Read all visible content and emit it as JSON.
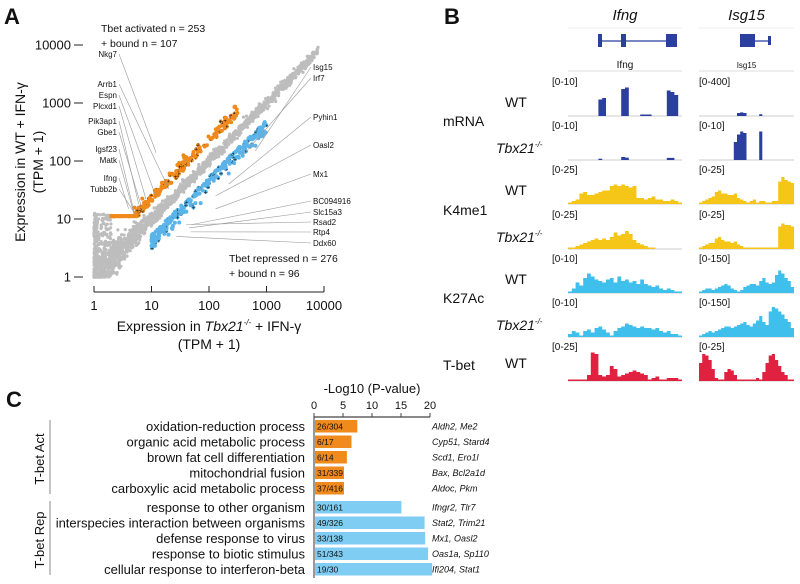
{
  "panels": {
    "a": "A",
    "b": "B",
    "c": "C"
  },
  "chart_data": [
    {
      "type": "scatter",
      "panel": "A",
      "xlabel_pre": "Expression in ",
      "xlabel_gene": "Tbx21",
      "xlabel_sup": "-/-",
      "xlabel_post": " + IFN-γ",
      "xlabel2": "(TPM + 1)",
      "ylabel": "Expression in WT + IFN-γ",
      "ylabel2": "(TPM + 1)",
      "xscale": "log",
      "yscale": "log",
      "xlim": [
        1,
        10000
      ],
      "ylim": [
        1,
        10000
      ],
      "xticks": [
        "1",
        "10",
        "100",
        "1000",
        "10000"
      ],
      "yticks": [
        "1",
        "10",
        "100",
        "1000",
        "10000"
      ],
      "annot_activated": [
        "Tbet activated n = 253",
        "+ bound n = 107"
      ],
      "annot_repressed": [
        "Tbet repressed n = 276",
        "+ bound n = 96"
      ],
      "colors": {
        "background": "#bdbdbd",
        "activated": "#f08a1c",
        "repressed": "#5ab4ea",
        "bound": "#111111"
      },
      "labeled_genes_activated": [
        {
          "gene": "Nkg7",
          "x": 12,
          "y": 140
        },
        {
          "gene": "Arrb1",
          "x": 20,
          "y": 33
        },
        {
          "gene": "Espn",
          "x": 12,
          "y": 24
        },
        {
          "gene": "Plcxd1",
          "x": 8,
          "y": 22
        },
        {
          "gene": "Pik3ap1",
          "x": 6,
          "y": 18
        },
        {
          "gene": "Gbe1",
          "x": 7,
          "y": 14
        },
        {
          "gene": "Igsf23",
          "x": 5,
          "y": 13
        },
        {
          "gene": "Matk",
          "x": 5,
          "y": 12
        },
        {
          "gene": "Ifng",
          "x": 4,
          "y": 15
        },
        {
          "gene": "Tubb2b",
          "x": 5,
          "y": 13
        }
      ],
      "labeled_genes_repressed": [
        {
          "gene": "Isg15",
          "x": 640,
          "y": 150
        },
        {
          "gene": "Irf7",
          "x": 400,
          "y": 130
        },
        {
          "gene": "Pyhin1",
          "x": 220,
          "y": 40
        },
        {
          "gene": "Oasl2",
          "x": 130,
          "y": 25
        },
        {
          "gene": "Mx1",
          "x": 130,
          "y": 15
        },
        {
          "gene": "BC094916",
          "x": 50,
          "y": 8
        },
        {
          "gene": "Slc15a3",
          "x": 45,
          "y": 7
        },
        {
          "gene": "Rsad2",
          "x": 40,
          "y": 8
        },
        {
          "gene": "Rtp4",
          "x": 48,
          "y": 6
        },
        {
          "gene": "Ddx60",
          "x": 27,
          "y": 5
        }
      ]
    },
    {
      "type": "bar",
      "panel": "C",
      "orientation": "horizontal",
      "title": "-Log10 (P-value)",
      "xlim": [
        0,
        20
      ],
      "xticks": [
        "0",
        "5",
        "10",
        "15",
        "20"
      ],
      "groups": [
        {
          "name": "T-bet Act",
          "color": "#f08a1c",
          "bars": [
            {
              "term": "oxidation-reduction process",
              "value": 7.3,
              "count": "26/304",
              "genes": "Aldh2, Me2"
            },
            {
              "term": "organic acid metabolic process",
              "value": 6.3,
              "count": "6/17",
              "genes": "Cyp51, Stard4"
            },
            {
              "term": "brown fat cell differentiation",
              "value": 5.5,
              "count": "6/14",
              "genes": "Scd1, Ero1l"
            },
            {
              "term": "mitochondrial fusion",
              "value": 5.0,
              "count": "31/339",
              "genes": "Bax, Bcl2a1d"
            },
            {
              "term": "carboxylic acid metabolic process",
              "value": 5.0,
              "count": "37/416",
              "genes": "Aldoc, Pkm"
            }
          ]
        },
        {
          "name": "T-bet Rep",
          "color": "#7fcdf2",
          "bars": [
            {
              "term": "response to other organism",
              "value": 14.9,
              "count": "30/161",
              "genes": "Ifngr2, Tlr7"
            },
            {
              "term": "interspecies interaction between organisms",
              "value": 18.9,
              "count": "49/326",
              "genes": "Stat2, Trim21"
            },
            {
              "term": "defense response to virus",
              "value": 19.0,
              "count": "33/138",
              "genes": "Mx1, Oasl2"
            },
            {
              "term": "response to biotic stimulus",
              "value": 19.5,
              "count": "51/343",
              "genes": "Oas1a, Sp110"
            },
            {
              "term": "cellular response to interferon-beta",
              "value": 20.2,
              "count": "19/30",
              "genes": "Ifi204, Stat1"
            }
          ]
        }
      ]
    }
  ],
  "tracks": {
    "genes": [
      {
        "title": "Ifng",
        "label": "Ifng"
      },
      {
        "title": "Isg15",
        "label": "Isg15"
      }
    ],
    "groups": [
      {
        "name": "mRNA",
        "color": "#2a3f9e"
      },
      {
        "name": "K4me1",
        "color": "#f5c518"
      },
      {
        "name": "K27Ac",
        "color": "#3fbfec"
      },
      {
        "name": "T-bet",
        "color": "#e0213f"
      }
    ],
    "wt_label": "WT",
    "ko_gene": "Tbx21",
    "ko_sup": "-/-",
    "rows": [
      {
        "group": 0,
        "sample": "WT",
        "ranges": [
          "[0-10]",
          "[0-400]"
        ],
        "profiles": [
          [
            0,
            0,
            0,
            0,
            0,
            0,
            0,
            0,
            0.55,
            0.6,
            0,
            0,
            0,
            0,
            0.9,
            0.95,
            0,
            0,
            0,
            0.05,
            0.05,
            0.05,
            0,
            0,
            0,
            0,
            0.85,
            0.8,
            0.7,
            0
          ],
          [
            0,
            0,
            0,
            0,
            0,
            0,
            0,
            0,
            0,
            0,
            0,
            0,
            0.1,
            0.12,
            0.1,
            0,
            0,
            0,
            0,
            0.06,
            0,
            0,
            0,
            0,
            0,
            0,
            0,
            0,
            0,
            0
          ]
        ]
      },
      {
        "group": 0,
        "sample": "KO",
        "ranges": [
          "[0-10]",
          "[0-10]"
        ],
        "profiles": [
          [
            0,
            0,
            0,
            0,
            0,
            0,
            0,
            0,
            0.04,
            0,
            0,
            0,
            0,
            0,
            0.1,
            0.08,
            0,
            0,
            0,
            0,
            0,
            0,
            0,
            0,
            0,
            0,
            0.07,
            0.07,
            0,
            0
          ],
          [
            0,
            0,
            0,
            0,
            0,
            0,
            0,
            0,
            0,
            0,
            0,
            0.6,
            0.85,
            0.95,
            0.9,
            0,
            0,
            0,
            0,
            0.95,
            0,
            0,
            0,
            0,
            0,
            0,
            0,
            0,
            0,
            0
          ]
        ]
      },
      {
        "group": 1,
        "sample": "WT",
        "ranges": [
          "[0-25]",
          "[0-25]"
        ],
        "profiles": [
          [
            0.05,
            0.1,
            0.15,
            0.35,
            0.4,
            0.3,
            0.3,
            0.35,
            0.4,
            0.45,
            0.45,
            0.6,
            0.65,
            0.6,
            0.65,
            0.6,
            0.55,
            0.6,
            0.2,
            0.2,
            0.15,
            0.2,
            0.25,
            0.15,
            0.15,
            0.1,
            0.1,
            0.15,
            0.1,
            0.05
          ],
          [
            0.05,
            0.1,
            0.15,
            0.2,
            0.25,
            0.4,
            0.45,
            0.35,
            0.35,
            0.3,
            0.3,
            0.35,
            0.2,
            0.15,
            0.1,
            0.05,
            0.1,
            0.15,
            0.05,
            0.1,
            0.1,
            0.05,
            0.05,
            0.1,
            0.1,
            0.75,
            0.9,
            0.8,
            0.75,
            0.7
          ]
        ]
      },
      {
        "group": 1,
        "sample": "KO",
        "ranges": [
          "[0-25]",
          "[0-25]"
        ],
        "profiles": [
          [
            0.05,
            0.05,
            0.1,
            0.15,
            0.2,
            0.25,
            0.3,
            0.35,
            0.3,
            0.35,
            0.3,
            0.4,
            0.55,
            0.45,
            0.5,
            0.6,
            0.5,
            0.3,
            0.2,
            0.15,
            0.1,
            0.05,
            0.05,
            0,
            0,
            0,
            0,
            0,
            0,
            0
          ],
          [
            0.05,
            0.1,
            0.15,
            0.2,
            0.2,
            0.35,
            0.4,
            0.3,
            0.25,
            0.25,
            0.2,
            0.25,
            0.15,
            0.1,
            0.05,
            0.05,
            0.05,
            0.05,
            0.05,
            0.05,
            0.05,
            0.05,
            0.05,
            0.05,
            0.05,
            0.75,
            0.85,
            0.8,
            0.8,
            0.75
          ]
        ]
      },
      {
        "group": 2,
        "sample": "WT",
        "ranges": [
          "[0-10]",
          "[0-150]"
        ],
        "profiles": [
          [
            0.05,
            0.15,
            0.35,
            0.25,
            0.5,
            0.65,
            0.55,
            0.45,
            0.4,
            0.35,
            0.45,
            0.5,
            0.35,
            0.55,
            0.4,
            0.45,
            0.35,
            0.4,
            0.3,
            0.45,
            0.3,
            0.25,
            0.2,
            0.25,
            0.15,
            0.1,
            0.15,
            0.1,
            0.05,
            0.05
          ],
          [
            0.05,
            0.1,
            0.15,
            0.15,
            0.1,
            0.15,
            0.2,
            0.25,
            0.3,
            0.25,
            0.15,
            0.1,
            0.05,
            0.1,
            0.2,
            0.25,
            0.3,
            0.3,
            0.25,
            0.4,
            0.5,
            0.35,
            0.3,
            0.35,
            0.6,
            0.75,
            0.65,
            0.5,
            0.4,
            0.2
          ]
        ]
      },
      {
        "group": 2,
        "sample": "KO",
        "ranges": [
          "[0-10]",
          "[0-150]"
        ],
        "profiles": [
          [
            0.1,
            0.2,
            0.15,
            0.05,
            0.2,
            0.25,
            0.15,
            0.3,
            0.35,
            0.25,
            0.15,
            0.05,
            0.2,
            0.3,
            0.35,
            0.45,
            0.4,
            0.35,
            0.3,
            0.35,
            0.3,
            0.3,
            0.25,
            0.3,
            0.2,
            0.15,
            0.2,
            0.1,
            0.1,
            0.05
          ],
          [
            0.05,
            0.1,
            0.15,
            0.2,
            0.15,
            0.2,
            0.25,
            0.3,
            0.35,
            0.35,
            0.3,
            0.35,
            0.4,
            0.45,
            0.5,
            0.4,
            0.35,
            0.45,
            0.55,
            0.7,
            0.5,
            0.4,
            0.85,
            1,
            0.95,
            0.85,
            0.75,
            0.6,
            0.5,
            0.3
          ]
        ]
      },
      {
        "group": 3,
        "sample": "WT",
        "ranges": [
          "[0-25]",
          "[0-25]"
        ],
        "profiles": [
          [
            0.05,
            0.05,
            0.05,
            0.05,
            0.05,
            0.2,
            0.95,
            0.9,
            0.2,
            0.15,
            0.2,
            0.5,
            0.4,
            0.15,
            0.2,
            0.25,
            0.3,
            0.35,
            0.3,
            0.25,
            0.2,
            0.05,
            0.1,
            0.15,
            0.05,
            0.05,
            0.1,
            0.1,
            0.1,
            0.05
          ],
          [
            0.6,
            0.9,
            0.85,
            0.7,
            0.4,
            0.1,
            0.05,
            0.05,
            0.3,
            0.4,
            0.35,
            0.2,
            0.05,
            0.05,
            0.05,
            0.05,
            0.05,
            0.05,
            0.1,
            0.05,
            0.3,
            0.6,
            0.85,
            0.9,
            0.7,
            0.5,
            0.3,
            0.2,
            0.05,
            0.05
          ]
        ]
      }
    ]
  }
}
